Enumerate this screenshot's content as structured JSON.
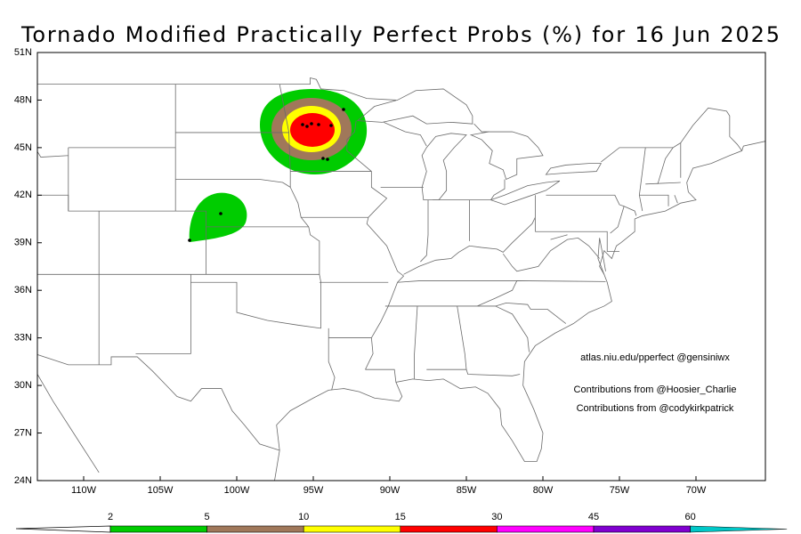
{
  "title": "Tornado Modified Practically Perfect Probs (%) for 16 Jun 2025",
  "lat_labels": [
    "51N",
    "48N",
    "45N",
    "42N",
    "39N",
    "36N",
    "33N",
    "30N",
    "27N",
    "24N"
  ],
  "lon_labels": [
    "110W",
    "105W",
    "100W",
    "95W",
    "90W",
    "85W",
    "80W",
    "75W",
    "70W"
  ],
  "credits": [
    "atlas.niu.edu/pperfect @gensiniwx",
    "Contributions from @Hoosier_Charlie",
    "Contributions from @codykirkpatrick"
  ],
  "colorbar": {
    "levels": [
      2,
      5,
      10,
      15,
      30,
      45,
      60
    ],
    "colors": [
      "#00cc00",
      "#a0785a",
      "#ffff00",
      "#ff0000",
      "#ff00ff",
      "#8000d0",
      "#00c8c8"
    ]
  }
}
